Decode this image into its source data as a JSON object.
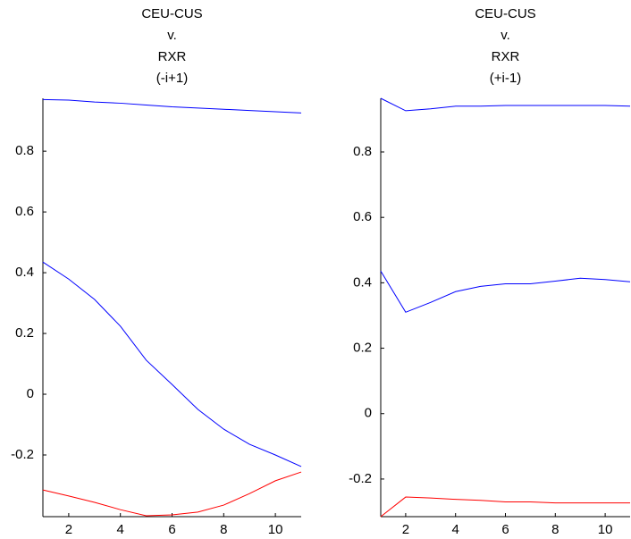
{
  "chart_data": [
    {
      "type": "line",
      "title": [
        "CEU-CUS",
        "v.",
        "RXR",
        "(-i+1)"
      ],
      "x": [
        1,
        2,
        3,
        4,
        5,
        6,
        7,
        8,
        9,
        10,
        11
      ],
      "series": [
        {
          "color": "#0000ff",
          "values": [
            0.97,
            0.968,
            0.962,
            0.958,
            0.952,
            0.946,
            0.942,
            0.938,
            0.934,
            0.93,
            0.926
          ]
        },
        {
          "color": "#0000ff",
          "values": [
            0.435,
            0.379,
            0.312,
            0.224,
            0.112,
            0.032,
            -0.05,
            -0.115,
            -0.165,
            -0.2,
            -0.238
          ]
        },
        {
          "color": "#ff0000",
          "values": [
            -0.315,
            -0.335,
            -0.356,
            -0.38,
            -0.4,
            -0.397,
            -0.388,
            -0.365,
            -0.327,
            -0.285,
            -0.256
          ]
        }
      ],
      "xlim": [
        1,
        11
      ],
      "xticks": [
        2,
        4,
        6,
        8,
        10
      ],
      "ylim": [
        -0.403,
        0.974
      ],
      "yticks": [
        -0.2,
        0,
        0.2,
        0.4,
        0.6,
        0.8
      ]
    },
    {
      "type": "line",
      "title": [
        "CEU-CUS",
        "v.",
        "RXR",
        "(+i-1)"
      ],
      "x": [
        1,
        2,
        3,
        4,
        5,
        6,
        7,
        8,
        9,
        10,
        11
      ],
      "series": [
        {
          "color": "#0000ff",
          "values": [
            0.964,
            0.926,
            0.932,
            0.94,
            0.94,
            0.942,
            0.942,
            0.942,
            0.942,
            0.942,
            0.94
          ]
        },
        {
          "color": "#0000ff",
          "values": [
            0.436,
            0.31,
            0.34,
            0.373,
            0.389,
            0.397,
            0.397,
            0.405,
            0.414,
            0.41,
            0.403
          ]
        },
        {
          "color": "#ff0000",
          "values": [
            -0.315,
            -0.255,
            -0.258,
            -0.262,
            -0.265,
            -0.27,
            -0.27,
            -0.273,
            -0.273,
            -0.273,
            -0.273
          ]
        }
      ],
      "xlim": [
        1,
        11
      ],
      "xticks": [
        2,
        4,
        6,
        8,
        10
      ],
      "ylim": [
        -0.315,
        0.964
      ],
      "yticks": [
        -0.2,
        0,
        0.2,
        0.4,
        0.6,
        0.8
      ]
    }
  ]
}
